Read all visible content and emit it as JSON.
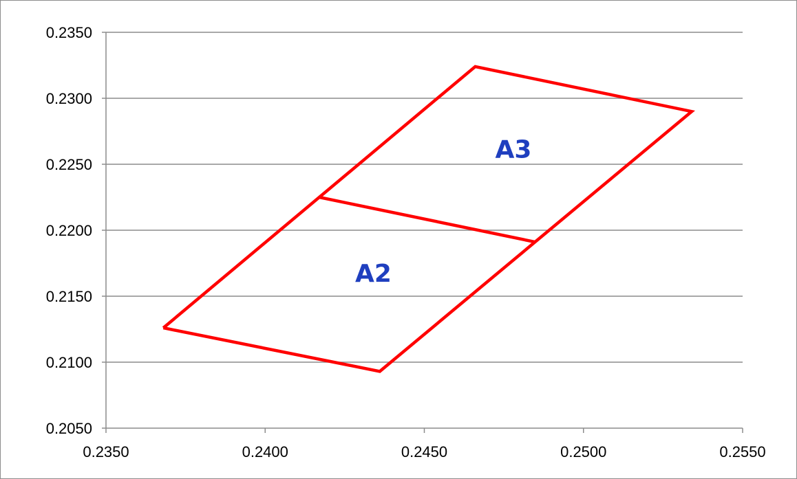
{
  "chart_data": {
    "type": "line",
    "title": "",
    "xlabel": "",
    "ylabel": "",
    "xlim": [
      0.235,
      0.255
    ],
    "ylim": [
      0.205,
      0.235
    ],
    "x_ticks": [
      "0.2350",
      "0.2400",
      "0.2450",
      "0.2500",
      "0.2550"
    ],
    "y_ticks": [
      "0.2350",
      "0.2300",
      "0.2250",
      "0.2200",
      "0.2150",
      "0.2100",
      "0.2050"
    ],
    "x_tick_values": [
      0.235,
      0.24,
      0.245,
      0.25,
      0.255
    ],
    "y_tick_values": [
      0.235,
      0.23,
      0.225,
      0.22,
      0.215,
      0.21,
      0.205
    ],
    "grid": "horizontal",
    "legend": "none",
    "series": [
      {
        "points": [
          {
            "x": 0.2368,
            "y": 0.2126
          },
          {
            "x": 0.2436,
            "y": 0.2093
          },
          {
            "x": 0.2534,
            "y": 0.229
          },
          {
            "x": 0.2466,
            "y": 0.2324
          },
          {
            "x": 0.2368,
            "y": 0.2126
          }
        ]
      },
      {
        "points": [
          {
            "x": 0.2417,
            "y": 0.2225
          },
          {
            "x": 0.2485,
            "y": 0.2191
          }
        ]
      }
    ],
    "annotations": [
      {
        "text": "A3",
        "x": 0.2478,
        "y": 0.2255
      },
      {
        "text": "A2",
        "x": 0.2434,
        "y": 0.2161
      }
    ],
    "colors": {
      "line": "#ff0000",
      "annotation": "#1f3fbf",
      "grid": "#8c8c8c",
      "axis": "#8c8c8c"
    }
  }
}
